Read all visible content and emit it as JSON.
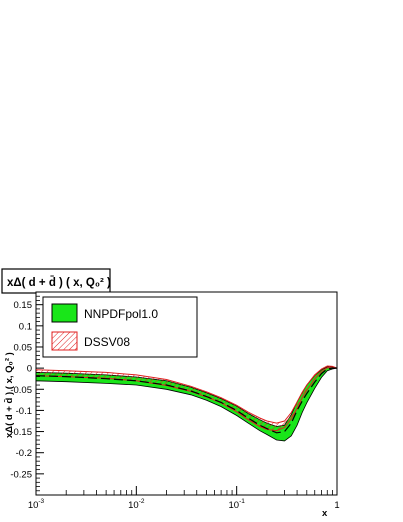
{
  "chart_data": {
    "type": "line",
    "title": "xΔ( d + d̄ ) ( x, Q₀² )",
    "xlabel": "x",
    "ylabel": "xΔ( d + d̄ ) ( x, Q₀² )",
    "x_scale": "log",
    "xlim": [
      0.001,
      1
    ],
    "ylim": [
      -0.3,
      0.18
    ],
    "x_tick_labels": [
      {
        "value": 0.001,
        "base": "10",
        "exp": "-3"
      },
      {
        "value": 0.01,
        "base": "10",
        "exp": "-2"
      },
      {
        "value": 0.1,
        "base": "10",
        "exp": "-1"
      },
      {
        "value": 1,
        "base": "1",
        "exp": ""
      }
    ],
    "y_ticks": [
      0.15,
      0.1,
      0.05,
      0,
      -0.05,
      -0.1,
      -0.15,
      -0.2,
      -0.25
    ],
    "y_tick_labels": [
      "0.15",
      "0.1",
      "0.05",
      "0",
      "-0.05",
      "-0.1",
      "-0.15",
      "-0.2",
      "-0.25"
    ],
    "legend": {
      "placement": "top-left",
      "entries": [
        "NNPDFpol1.0",
        "DSSV08"
      ]
    },
    "grid": false,
    "colors": {
      "nnpdf_fill": "#19e619",
      "nnpdf_line": "#000000",
      "dssv_line": "#e02020",
      "dssv_hatch": "#e02020"
    },
    "series": [
      {
        "name": "NNPDFpol1.0",
        "style": "band",
        "x": [
          0.001,
          0.002,
          0.005,
          0.01,
          0.02,
          0.035,
          0.05,
          0.07,
          0.1,
          0.13,
          0.17,
          0.2,
          0.25,
          0.3,
          0.35,
          0.4,
          0.45,
          0.5,
          0.6,
          0.7,
          0.8,
          0.9,
          1.0
        ],
        "upper": [
          -0.01,
          -0.012,
          -0.016,
          -0.021,
          -0.03,
          -0.045,
          -0.058,
          -0.072,
          -0.09,
          -0.107,
          -0.122,
          -0.13,
          -0.138,
          -0.135,
          -0.11,
          -0.08,
          -0.058,
          -0.04,
          -0.018,
          -0.004,
          0.003,
          0.003,
          0.0
        ],
        "central": [
          -0.018,
          -0.02,
          -0.025,
          -0.03,
          -0.04,
          -0.054,
          -0.067,
          -0.081,
          -0.1,
          -0.118,
          -0.135,
          -0.143,
          -0.153,
          -0.15,
          -0.13,
          -0.1,
          -0.078,
          -0.06,
          -0.033,
          -0.013,
          -0.002,
          0.0,
          0.0
        ],
        "lower": [
          -0.03,
          -0.032,
          -0.036,
          -0.04,
          -0.05,
          -0.063,
          -0.076,
          -0.091,
          -0.112,
          -0.13,
          -0.148,
          -0.157,
          -0.17,
          -0.172,
          -0.16,
          -0.135,
          -0.105,
          -0.082,
          -0.048,
          -0.022,
          -0.006,
          -0.002,
          0.0
        ]
      },
      {
        "name": "DSSV08",
        "style": "hatched-band",
        "x": [
          0.001,
          0.002,
          0.005,
          0.01,
          0.02,
          0.035,
          0.05,
          0.07,
          0.1,
          0.13,
          0.17,
          0.2,
          0.25,
          0.3,
          0.35,
          0.4,
          0.45,
          0.5,
          0.6,
          0.7,
          0.8,
          0.9,
          1.0
        ],
        "upper": [
          -0.004,
          -0.006,
          -0.01,
          -0.016,
          -0.027,
          -0.043,
          -0.056,
          -0.07,
          -0.088,
          -0.104,
          -0.118,
          -0.125,
          -0.13,
          -0.125,
          -0.105,
          -0.08,
          -0.057,
          -0.04,
          -0.016,
          -0.002,
          0.005,
          0.004,
          0.0
        ],
        "lower": [
          -0.018,
          -0.02,
          -0.024,
          -0.03,
          -0.041,
          -0.055,
          -0.068,
          -0.082,
          -0.103,
          -0.122,
          -0.138,
          -0.145,
          -0.148,
          -0.14,
          -0.12,
          -0.095,
          -0.07,
          -0.052,
          -0.026,
          -0.008,
          0.001,
          0.001,
          0.0
        ]
      }
    ]
  }
}
